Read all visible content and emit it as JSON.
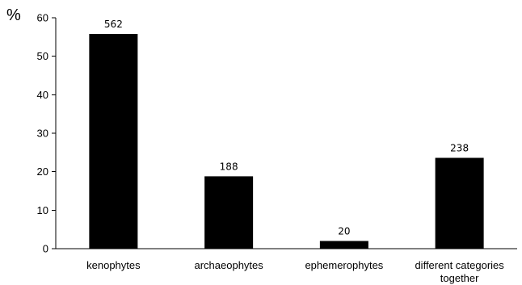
{
  "chart_data": {
    "type": "bar",
    "ylabel": "%",
    "ylim": [
      0,
      60
    ],
    "yticks": [
      0,
      10,
      20,
      30,
      40,
      50,
      60
    ],
    "grid": false,
    "legend": "none",
    "categories": [
      [
        "kenophytes"
      ],
      [
        "archaeophytes"
      ],
      [
        "ephemerophytes"
      ],
      [
        "different categories",
        "together"
      ]
    ],
    "values": [
      55.8,
      18.8,
      2.0,
      23.6
    ],
    "data_labels": [
      "562",
      "188",
      "20",
      "238"
    ],
    "colors": {
      "bar": "#000000",
      "axis": "#000000"
    }
  }
}
